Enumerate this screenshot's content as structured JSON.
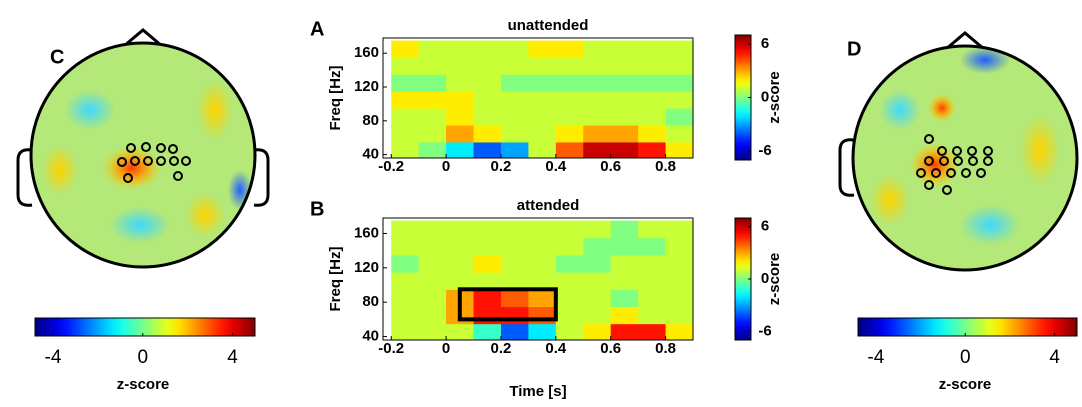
{
  "chart_data": [
    {
      "type": "heatmap",
      "label": "A",
      "title": "unattended",
      "ylabel": "Freq [Hz]",
      "x": [
        -0.15,
        -0.05,
        0.05,
        0.15,
        0.25,
        0.35,
        0.45,
        0.55,
        0.65,
        0.75,
        0.85
      ],
      "y": [
        45,
        65,
        85,
        105,
        125,
        145,
        165
      ],
      "values": [
        [
          1,
          0,
          -2,
          -4,
          -3,
          1,
          4,
          6,
          6,
          5,
          2
        ],
        [
          1,
          1,
          3,
          2,
          1,
          1,
          2,
          3,
          3,
          2,
          1
        ],
        [
          1,
          1,
          2,
          1,
          1,
          1,
          1,
          1,
          1,
          1,
          0
        ],
        [
          2,
          2,
          2,
          1,
          1,
          1,
          1,
          1,
          1,
          1,
          1
        ],
        [
          0,
          0,
          1,
          1,
          0,
          0,
          0,
          0,
          0,
          0,
          0
        ],
        [
          1,
          1,
          1,
          1,
          1,
          1,
          1,
          1,
          1,
          1,
          1
        ],
        [
          2,
          1,
          1,
          1,
          1,
          2,
          2,
          1,
          1,
          1,
          1
        ]
      ],
      "xlim": [
        -0.23,
        0.9
      ],
      "ylim": [
        36,
        178
      ],
      "xticks": [
        -0.2,
        0,
        0.2,
        0.4,
        0.6,
        0.8
      ],
      "yticks": [
        40,
        80,
        120,
        160
      ],
      "colorbar": {
        "clim": [
          -7,
          7
        ],
        "ticks": [
          -6,
          0,
          6
        ],
        "label": "z-score"
      }
    },
    {
      "type": "heatmap",
      "label": "B",
      "title": "attended",
      "ylabel": "Freq [Hz]",
      "xlabel": "Time [s]",
      "x": [
        -0.15,
        -0.05,
        0.05,
        0.15,
        0.25,
        0.35,
        0.45,
        0.55,
        0.65,
        0.75,
        0.85
      ],
      "y": [
        45,
        65,
        85,
        105,
        125,
        145,
        165
      ],
      "values": [
        [
          1,
          1,
          1,
          -1,
          -4,
          -2,
          1,
          2,
          5,
          5,
          2
        ],
        [
          1,
          1,
          3,
          5,
          5,
          4,
          1,
          1,
          2,
          1,
          1
        ],
        [
          1,
          1,
          3,
          5,
          4,
          3,
          1,
          1,
          0,
          1,
          1
        ],
        [
          1,
          1,
          1,
          1,
          1,
          1,
          1,
          1,
          1,
          1,
          1
        ],
        [
          0,
          1,
          1,
          2,
          1,
          1,
          0,
          0,
          1,
          1,
          1
        ],
        [
          1,
          1,
          1,
          1,
          1,
          1,
          1,
          0,
          0,
          0,
          1
        ],
        [
          1,
          1,
          1,
          1,
          1,
          1,
          1,
          1,
          0,
          1,
          1
        ]
      ],
      "xlim": [
        -0.23,
        0.9
      ],
      "ylim": [
        36,
        178
      ],
      "xticks": [
        -0.2,
        0,
        0.2,
        0.4,
        0.6,
        0.8
      ],
      "yticks": [
        40,
        80,
        120,
        160
      ],
      "highlight": {
        "x": [
          0.05,
          0.4
        ],
        "y": [
          60,
          95
        ]
      },
      "colorbar": {
        "clim": [
          -7,
          7
        ],
        "ticks": [
          -6,
          0,
          6
        ],
        "label": "z-score"
      }
    }
  ],
  "topoplots": [
    {
      "label": "C",
      "colorbar": {
        "clim": [
          -4.8,
          5
        ],
        "ticks": [
          -4,
          0,
          4
        ],
        "label": "z-score"
      }
    },
    {
      "label": "D",
      "colorbar": {
        "clim": [
          -4.8,
          5
        ],
        "ticks": [
          -4,
          0,
          4
        ],
        "label": "z-score"
      }
    }
  ]
}
